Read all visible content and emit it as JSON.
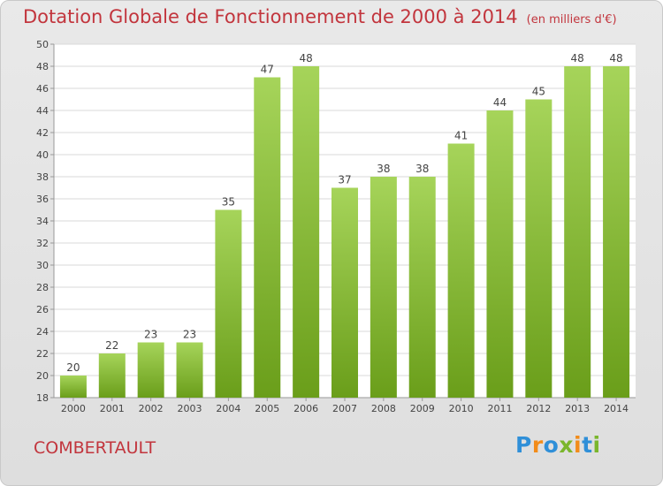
{
  "title": "Dotation Globale de Fonctionnement de 2000 à 2014",
  "unit": "(en milliers d'€)",
  "commune": "COMBERTAULT",
  "logo": [
    "P",
    "r",
    "o",
    "x",
    "i",
    "t",
    "i"
  ],
  "logo_colors": [
    "#2f8fd8",
    "#f28c1a",
    "#2f8fd8",
    "#7ab62c",
    "#f28c1a",
    "#2f8fd8",
    "#7ab62c"
  ],
  "colors": {
    "bar_light": "#a6d45a",
    "bar_dark": "#6a9e1a",
    "title": "#c2353d"
  },
  "chart_data": {
    "type": "bar",
    "categories": [
      "2000",
      "2001",
      "2002",
      "2003",
      "2004",
      "2005",
      "2006",
      "2007",
      "2008",
      "2009",
      "2010",
      "2011",
      "2012",
      "2013",
      "2014"
    ],
    "values": [
      20,
      22,
      23,
      23,
      35,
      47,
      48,
      37,
      38,
      38,
      41,
      44,
      45,
      48,
      48
    ],
    "ylim": [
      18,
      50
    ],
    "yticks": [
      18,
      20,
      22,
      24,
      26,
      28,
      30,
      32,
      34,
      36,
      38,
      40,
      42,
      44,
      46,
      48,
      50
    ],
    "grid": true
  }
}
